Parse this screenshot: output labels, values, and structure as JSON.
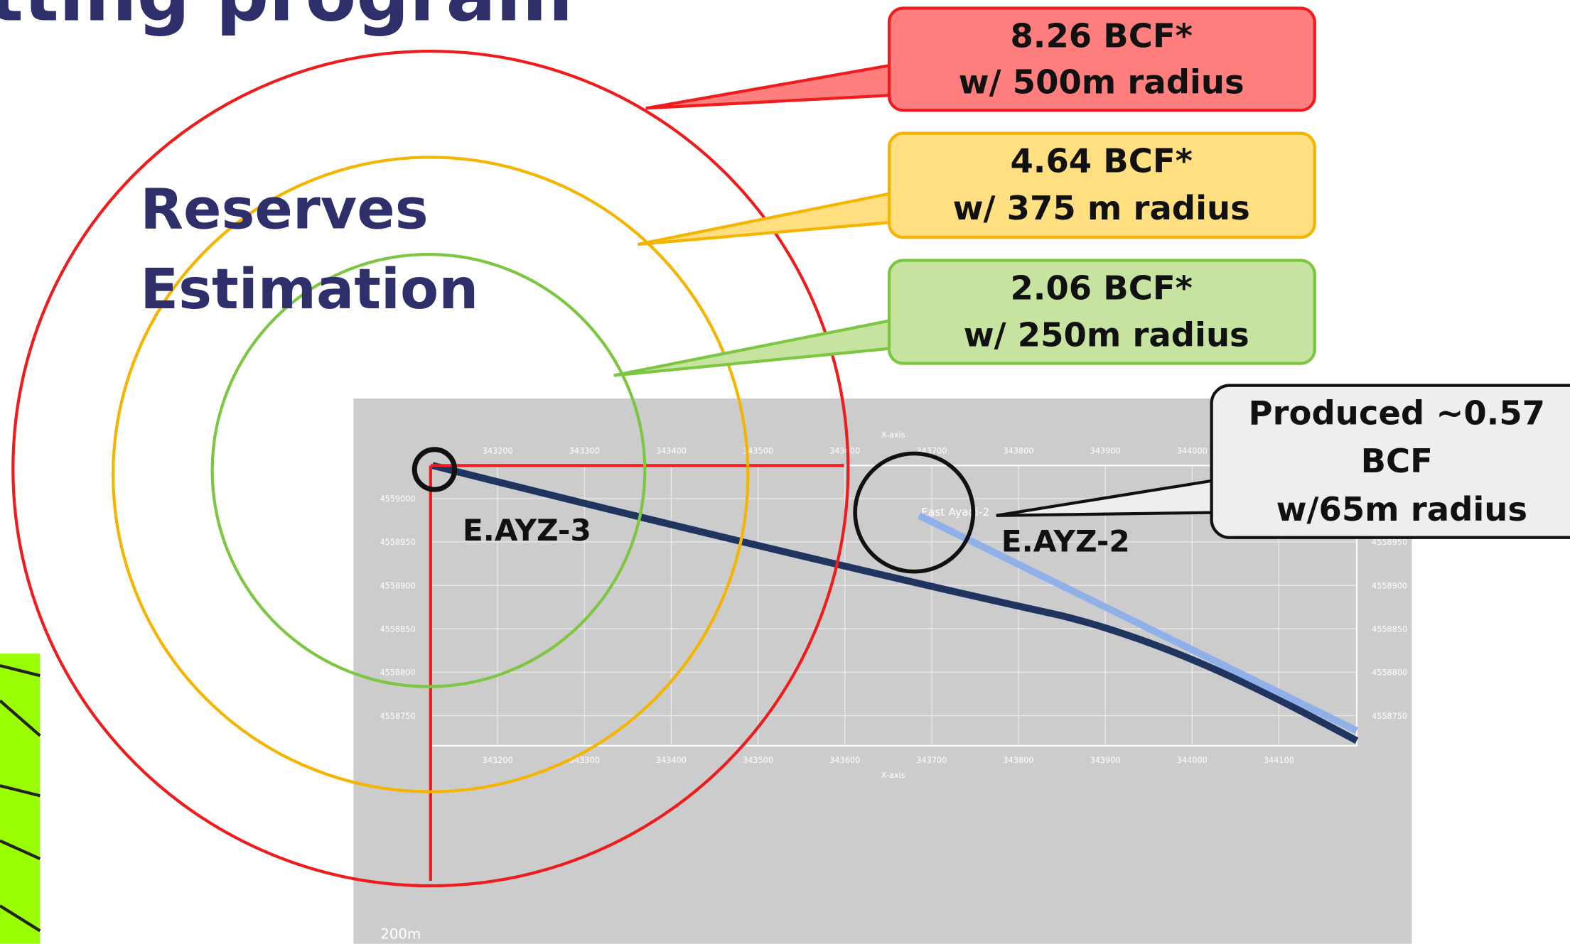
{
  "title": "tting program",
  "heading": [
    "Reserves",
    "Estimation"
  ],
  "callouts": [
    {
      "lines": [
        "8.26 BCF*",
        "w/ 500m radius"
      ]
    },
    {
      "lines": [
        "4.64 BCF*",
        "w/ 375 m radius"
      ]
    },
    {
      "lines": [
        "2.06 BCF*",
        "w/ 250m radius"
      ]
    }
  ],
  "produced": {
    "lines": [
      "Produced ~0.57",
      "BCF",
      "w/65m radius"
    ]
  },
  "wells": [
    "E.AYZ-3",
    "E.AYZ-2"
  ],
  "map": {
    "axis_label": "X-axis",
    "x_ticks": [
      "343200",
      "343300",
      "343400",
      "343500",
      "343600",
      "343700",
      "343800",
      "343900",
      "344000",
      "344100"
    ],
    "y_ticks": [
      "4559000",
      "4558950",
      "4558900",
      "4558850",
      "4558800",
      "4558750"
    ],
    "well_tag": "East Ayadi-2",
    "scale": "200m"
  }
}
